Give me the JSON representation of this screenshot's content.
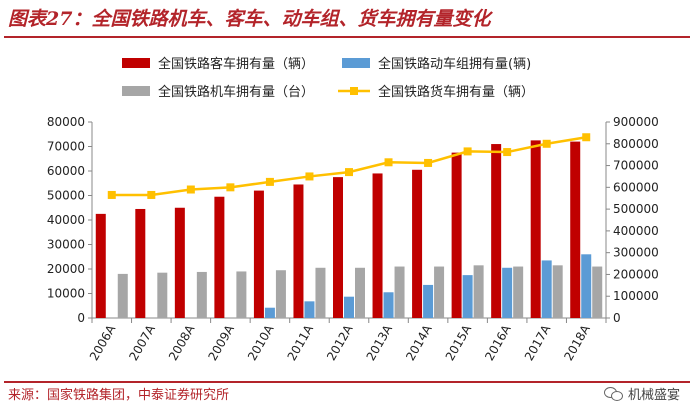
{
  "header": {
    "title": "图表27：全国铁路机车、客车、动车组、货车拥有量变化"
  },
  "footer": {
    "source": "来源：国家铁路集团，中泰证券研究所",
    "brand": "机械盛宴"
  },
  "colors": {
    "passenger": "#c00000",
    "emu": "#5b9bd5",
    "locomotive": "#a6a6a6",
    "freight": "#ffc000",
    "accent": "#b3242a"
  },
  "chart_data": {
    "type": "bar+line",
    "categories": [
      "2006A",
      "2007A",
      "2008A",
      "2009A",
      "2010A",
      "2011A",
      "2012A",
      "2013A",
      "2014A",
      "2015A",
      "2016A",
      "2017A",
      "2018A"
    ],
    "series": [
      {
        "name": "全国铁路客车拥有量（辆）",
        "type": "bar",
        "axis": "left",
        "values": [
          42500,
          44500,
          45000,
          49500,
          52000,
          54500,
          57500,
          59000,
          60500,
          67500,
          71000,
          72500,
          72000
        ]
      },
      {
        "name": "全国铁路动车组拥有量(辆)",
        "type": "bar",
        "axis": "left",
        "values": [
          0,
          0,
          0,
          0,
          4200,
          6800,
          8700,
          10500,
          13500,
          17500,
          20500,
          23500,
          26000
        ]
      },
      {
        "name": "全国铁路机车拥有量（台）",
        "type": "bar",
        "axis": "left",
        "values": [
          18000,
          18500,
          18800,
          19000,
          19500,
          20500,
          20500,
          21000,
          21000,
          21500,
          21000,
          21500,
          21000
        ]
      },
      {
        "name": "全国铁路货车拥有量（辆）",
        "type": "line",
        "axis": "right",
        "values": [
          565000,
          565000,
          590000,
          600000,
          625000,
          650000,
          670000,
          715000,
          712000,
          765000,
          762000,
          800000,
          830000
        ]
      }
    ],
    "y_left": {
      "min": 0,
      "max": 80000,
      "ticks": [
        "0",
        "10000",
        "20000",
        "30000",
        "40000",
        "50000",
        "60000",
        "70000",
        "80000"
      ]
    },
    "y_right": {
      "min": 0,
      "max": 900000,
      "ticks": [
        "0",
        "100000",
        "200000",
        "300000",
        "400000",
        "500000",
        "600000",
        "700000",
        "800000",
        "900000"
      ]
    },
    "legend_position": "top"
  }
}
